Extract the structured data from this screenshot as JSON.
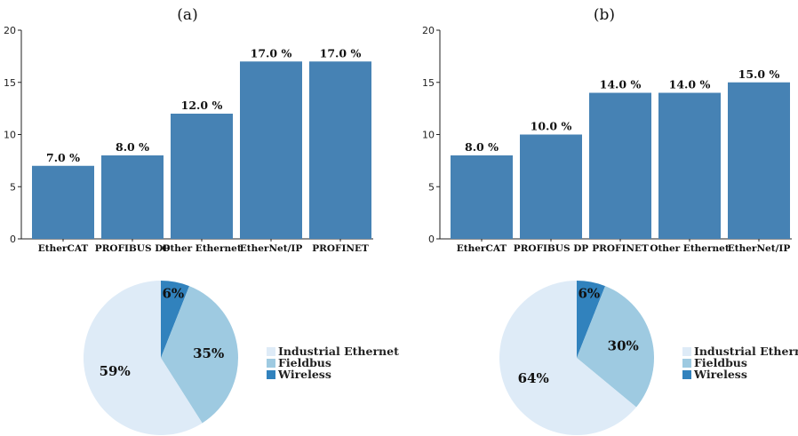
{
  "chart_data": [
    {
      "type": "bar",
      "title": "(a)",
      "categories": [
        "EtherCAT",
        "PROFIBUS DP",
        "Other Ethernet",
        "EtherNet/IP",
        "PROFINET"
      ],
      "values": [
        7.0,
        8.0,
        12.0,
        17.0,
        17.0
      ],
      "data_labels": [
        "7.0 %",
        "8.0 %",
        "12.0 %",
        "17.0 %",
        "17.0 %"
      ],
      "ylim": [
        0,
        20
      ],
      "yticks": [
        0,
        5,
        10,
        15,
        20
      ],
      "grid": false,
      "color": "#4682b4"
    },
    {
      "type": "bar",
      "title": "(b)",
      "categories": [
        "EtherCAT",
        "PROFIBUS DP",
        "PROFINET",
        "Other Ethernet",
        "EtherNet/IP"
      ],
      "values": [
        8.0,
        10.0,
        14.0,
        14.0,
        15.0
      ],
      "data_labels": [
        "8.0 %",
        "10.0 %",
        "14.0 %",
        "14.0 %",
        "15.0 %"
      ],
      "ylim": [
        0,
        20
      ],
      "yticks": [
        0,
        5,
        10,
        15,
        20
      ],
      "grid": false,
      "color": "#4682b4"
    },
    {
      "type": "pie",
      "labels": [
        "Industrial Ethernet",
        "Fieldbus",
        "Wireless"
      ],
      "values": [
        59,
        35,
        6
      ],
      "slice_labels": [
        "59%",
        "35%",
        "6%"
      ],
      "colors": [
        "#deebf7",
        "#9ecae1",
        "#3182bd"
      ],
      "legend": "right"
    },
    {
      "type": "pie",
      "labels": [
        "Industrial Ethernet",
        "Fieldbus",
        "Wireless"
      ],
      "values": [
        64,
        30,
        6
      ],
      "slice_labels": [
        "64%",
        "30%",
        "6%"
      ],
      "colors": [
        "#deebf7",
        "#9ecae1",
        "#3182bd"
      ],
      "legend": "right"
    }
  ]
}
